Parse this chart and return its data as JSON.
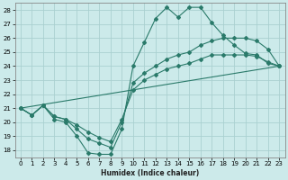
{
  "xlabel": "Humidex (Indice chaleur)",
  "bg_color": "#cceaea",
  "grid_color": "#aad0d0",
  "line_color": "#2a7a6a",
  "xlim": [
    -0.5,
    23.5
  ],
  "ylim": [
    17.5,
    28.5
  ],
  "xticks": [
    0,
    1,
    2,
    3,
    4,
    5,
    6,
    7,
    8,
    9,
    10,
    11,
    12,
    13,
    14,
    15,
    16,
    17,
    18,
    19,
    20,
    21,
    22,
    23
  ],
  "yticks": [
    18,
    19,
    20,
    21,
    22,
    23,
    24,
    25,
    26,
    27,
    28
  ],
  "line1_x": [
    0,
    1,
    2,
    3,
    4,
    5,
    6,
    7,
    8,
    9,
    10,
    11,
    12,
    13,
    14,
    15,
    16,
    17,
    18,
    19,
    20,
    21,
    22,
    23
  ],
  "line1_y": [
    21.0,
    20.5,
    21.2,
    20.2,
    20.0,
    19.0,
    17.8,
    17.7,
    17.7,
    19.5,
    24.0,
    25.7,
    27.4,
    28.2,
    27.5,
    28.2,
    28.2,
    27.1,
    26.2,
    25.5,
    24.9,
    24.8,
    24.2,
    24.0
  ],
  "line2_x": [
    0,
    1,
    2,
    3,
    4,
    5,
    6,
    7,
    8,
    9,
    10,
    11,
    12,
    13,
    14,
    15,
    16,
    17,
    18,
    19,
    20,
    21,
    22,
    23
  ],
  "line2_y": [
    21.0,
    20.5,
    21.2,
    20.4,
    20.2,
    19.5,
    18.8,
    18.5,
    18.2,
    20.0,
    22.8,
    23.5,
    24.0,
    24.5,
    24.8,
    25.0,
    25.5,
    25.8,
    26.0,
    26.0,
    26.0,
    25.8,
    25.2,
    24.0
  ],
  "line3_x": [
    0,
    1,
    2,
    3,
    4,
    5,
    6,
    7,
    8,
    9,
    10,
    11,
    12,
    13,
    14,
    15,
    16,
    17,
    18,
    19,
    20,
    21,
    22,
    23
  ],
  "line3_y": [
    21.0,
    20.5,
    21.2,
    20.4,
    20.2,
    19.8,
    19.3,
    18.9,
    18.6,
    20.2,
    22.3,
    23.0,
    23.4,
    23.8,
    24.0,
    24.2,
    24.5,
    24.8,
    24.8,
    24.8,
    24.8,
    24.7,
    24.3,
    24.0
  ],
  "line4_x": [
    0,
    23
  ],
  "line4_y": [
    21.0,
    24.0
  ]
}
